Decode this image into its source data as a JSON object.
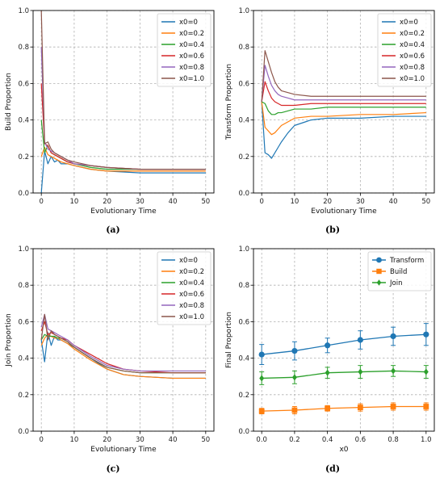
{
  "chart_data": [
    {
      "type": "line",
      "caption": "(a)",
      "xlabel": "Evolutionary Time",
      "ylabel": "Build Proportion",
      "xlim": [
        -2.5,
        52.5
      ],
      "ylim": [
        0,
        1
      ],
      "xticks": [
        0,
        10,
        20,
        30,
        40,
        50
      ],
      "yticks": [
        0.0,
        0.2,
        0.4,
        0.6,
        0.8,
        1.0
      ],
      "grid": true,
      "legend": "top-right",
      "series": [
        {
          "name": "x0=0",
          "color": "#1f77b4",
          "x": [
            0,
            1,
            2,
            3,
            4,
            5,
            6,
            8,
            10,
            15,
            20,
            30,
            40,
            50
          ],
          "y": [
            0.0,
            0.23,
            0.16,
            0.2,
            0.17,
            0.18,
            0.16,
            0.16,
            0.15,
            0.13,
            0.12,
            0.11,
            0.11,
            0.11
          ]
        },
        {
          "name": "x0=0.2",
          "color": "#ff7f0e",
          "x": [
            0,
            1,
            2,
            3,
            4,
            5,
            6,
            8,
            10,
            15,
            20,
            30,
            40,
            50
          ],
          "y": [
            0.2,
            0.25,
            0.21,
            0.2,
            0.19,
            0.18,
            0.17,
            0.16,
            0.15,
            0.13,
            0.12,
            0.12,
            0.12,
            0.12
          ]
        },
        {
          "name": "x0=0.4",
          "color": "#2ca02c",
          "x": [
            0,
            1,
            2,
            3,
            4,
            5,
            6,
            8,
            10,
            15,
            20,
            30,
            40,
            50
          ],
          "y": [
            0.4,
            0.22,
            0.26,
            0.22,
            0.21,
            0.2,
            0.19,
            0.17,
            0.16,
            0.14,
            0.13,
            0.13,
            0.13,
            0.13
          ]
        },
        {
          "name": "x0=0.6",
          "color": "#d62728",
          "x": [
            0,
            1,
            2,
            3,
            4,
            5,
            6,
            8,
            10,
            15,
            20,
            30,
            40,
            50
          ],
          "y": [
            0.6,
            0.27,
            0.26,
            0.22,
            0.21,
            0.2,
            0.19,
            0.17,
            0.16,
            0.15,
            0.14,
            0.13,
            0.13,
            0.13
          ]
        },
        {
          "name": "x0=0.8",
          "color": "#9467bd",
          "x": [
            0,
            1,
            2,
            3,
            4,
            5,
            6,
            8,
            10,
            15,
            20,
            30,
            40,
            50
          ],
          "y": [
            0.8,
            0.28,
            0.24,
            0.23,
            0.22,
            0.21,
            0.2,
            0.18,
            0.16,
            0.15,
            0.14,
            0.13,
            0.13,
            0.13
          ]
        },
        {
          "name": "x0=1.0",
          "color": "#8c564b",
          "x": [
            0,
            1,
            2,
            3,
            4,
            5,
            6,
            8,
            10,
            15,
            20,
            30,
            40,
            50
          ],
          "y": [
            1.0,
            0.27,
            0.28,
            0.24,
            0.22,
            0.21,
            0.2,
            0.18,
            0.17,
            0.15,
            0.14,
            0.13,
            0.13,
            0.13
          ]
        }
      ]
    },
    {
      "type": "line",
      "caption": "(b)",
      "xlabel": "Evolutionary Time",
      "ylabel": "Transform Proportion",
      "xlim": [
        -2.5,
        52.5
      ],
      "ylim": [
        0,
        1
      ],
      "xticks": [
        0,
        10,
        20,
        30,
        40,
        50
      ],
      "yticks": [
        0.0,
        0.2,
        0.4,
        0.6,
        0.8,
        1.0
      ],
      "grid": true,
      "legend": "top-right",
      "series": [
        {
          "name": "x0=0",
          "color": "#1f77b4",
          "x": [
            0,
            1,
            2,
            3,
            4,
            5,
            6,
            8,
            10,
            15,
            20,
            30,
            40,
            50
          ],
          "y": [
            0.5,
            0.22,
            0.21,
            0.19,
            0.22,
            0.25,
            0.28,
            0.33,
            0.37,
            0.4,
            0.41,
            0.41,
            0.42,
            0.42
          ]
        },
        {
          "name": "x0=0.2",
          "color": "#ff7f0e",
          "x": [
            0,
            1,
            2,
            3,
            4,
            5,
            6,
            8,
            10,
            15,
            20,
            30,
            40,
            50
          ],
          "y": [
            0.5,
            0.36,
            0.34,
            0.32,
            0.33,
            0.35,
            0.37,
            0.39,
            0.41,
            0.42,
            0.42,
            0.43,
            0.43,
            0.44
          ]
        },
        {
          "name": "x0=0.4",
          "color": "#2ca02c",
          "x": [
            0,
            1,
            2,
            3,
            4,
            5,
            6,
            8,
            10,
            15,
            20,
            30,
            40,
            50
          ],
          "y": [
            0.5,
            0.49,
            0.45,
            0.43,
            0.43,
            0.44,
            0.44,
            0.45,
            0.46,
            0.46,
            0.47,
            0.47,
            0.47,
            0.47
          ]
        },
        {
          "name": "x0=0.6",
          "color": "#d62728",
          "x": [
            0,
            1,
            2,
            3,
            4,
            5,
            6,
            8,
            10,
            15,
            20,
            30,
            40,
            50
          ],
          "y": [
            0.5,
            0.61,
            0.56,
            0.52,
            0.5,
            0.49,
            0.48,
            0.48,
            0.48,
            0.49,
            0.49,
            0.49,
            0.49,
            0.49
          ]
        },
        {
          "name": "x0=0.8",
          "color": "#9467bd",
          "x": [
            0,
            1,
            2,
            3,
            4,
            5,
            6,
            8,
            10,
            15,
            20,
            30,
            40,
            50
          ],
          "y": [
            0.5,
            0.7,
            0.64,
            0.59,
            0.56,
            0.54,
            0.53,
            0.52,
            0.51,
            0.51,
            0.51,
            0.51,
            0.51,
            0.51
          ]
        },
        {
          "name": "x0=1.0",
          "color": "#8c564b",
          "x": [
            0,
            1,
            2,
            3,
            4,
            5,
            6,
            8,
            10,
            15,
            20,
            30,
            40,
            50
          ],
          "y": [
            0.5,
            0.78,
            0.72,
            0.66,
            0.61,
            0.58,
            0.56,
            0.55,
            0.54,
            0.53,
            0.53,
            0.53,
            0.53,
            0.53
          ]
        }
      ]
    },
    {
      "type": "line",
      "caption": "(c)",
      "xlabel": "Evolutionary Time",
      "ylabel": "Join Proportion",
      "xlim": [
        -2.5,
        52.5
      ],
      "ylim": [
        0,
        1
      ],
      "xticks": [
        0,
        10,
        20,
        30,
        40,
        50
      ],
      "yticks": [
        0.0,
        0.2,
        0.4,
        0.6,
        0.8,
        1.0
      ],
      "grid": true,
      "legend": "top-right",
      "series": [
        {
          "name": "x0=0",
          "color": "#1f77b4",
          "x": [
            0,
            1,
            2,
            3,
            4,
            5,
            6,
            8,
            10,
            15,
            20,
            25,
            30,
            40,
            50
          ],
          "y": [
            0.5,
            0.38,
            0.54,
            0.47,
            0.52,
            0.5,
            0.5,
            0.48,
            0.46,
            0.4,
            0.34,
            0.31,
            0.3,
            0.29,
            0.29
          ]
        },
        {
          "name": "x0=0.2",
          "color": "#ff7f0e",
          "x": [
            0,
            1,
            2,
            3,
            4,
            5,
            6,
            8,
            10,
            15,
            20,
            25,
            30,
            40,
            50
          ],
          "y": [
            0.47,
            0.51,
            0.53,
            0.52,
            0.51,
            0.51,
            0.5,
            0.48,
            0.45,
            0.39,
            0.34,
            0.31,
            0.3,
            0.29,
            0.29
          ]
        },
        {
          "name": "x0=0.4",
          "color": "#2ca02c",
          "x": [
            0,
            1,
            2,
            3,
            4,
            5,
            6,
            8,
            10,
            15,
            20,
            25,
            30,
            40,
            50
          ],
          "y": [
            0.5,
            0.53,
            0.52,
            0.52,
            0.52,
            0.51,
            0.51,
            0.49,
            0.46,
            0.4,
            0.35,
            0.33,
            0.32,
            0.32,
            0.32
          ]
        },
        {
          "name": "x0=0.6",
          "color": "#d62728",
          "x": [
            0,
            1,
            2,
            3,
            4,
            5,
            6,
            8,
            10,
            15,
            20,
            25,
            30,
            40,
            50
          ],
          "y": [
            0.55,
            0.6,
            0.53,
            0.54,
            0.53,
            0.52,
            0.51,
            0.5,
            0.47,
            0.42,
            0.37,
            0.34,
            0.33,
            0.32,
            0.32
          ]
        },
        {
          "name": "x0=0.8",
          "color": "#9467bd",
          "x": [
            0,
            1,
            2,
            3,
            4,
            5,
            6,
            8,
            10,
            15,
            20,
            25,
            30,
            40,
            50
          ],
          "y": [
            0.57,
            0.64,
            0.56,
            0.55,
            0.54,
            0.53,
            0.52,
            0.5,
            0.47,
            0.41,
            0.36,
            0.34,
            0.33,
            0.33,
            0.33
          ]
        },
        {
          "name": "x0=1.0",
          "color": "#8c564b",
          "x": [
            0,
            1,
            2,
            3,
            4,
            5,
            6,
            8,
            10,
            15,
            20,
            25,
            30,
            40,
            50
          ],
          "y": [
            0.5,
            0.64,
            0.5,
            0.55,
            0.53,
            0.52,
            0.51,
            0.49,
            0.46,
            0.4,
            0.35,
            0.33,
            0.32,
            0.32,
            0.32
          ]
        }
      ]
    },
    {
      "type": "line",
      "caption": "(d)",
      "xlabel": "x0",
      "ylabel": "Final Proportion",
      "xlim": [
        -0.05,
        1.05
      ],
      "ylim": [
        0,
        1
      ],
      "xticks": [
        0.0,
        0.2,
        0.4,
        0.6,
        0.8,
        1.0
      ],
      "yticks": [
        0.0,
        0.2,
        0.4,
        0.6,
        0.8,
        1.0
      ],
      "grid": true,
      "legend": "top-right",
      "x": [
        0.0,
        0.2,
        0.4,
        0.6,
        0.8,
        1.0
      ],
      "series": [
        {
          "name": "Transform",
          "color": "#1f77b4",
          "marker": "circle",
          "values": [
            0.42,
            0.44,
            0.47,
            0.5,
            0.52,
            0.53
          ],
          "errors": [
            0.055,
            0.05,
            0.04,
            0.05,
            0.05,
            0.06
          ]
        },
        {
          "name": "Build",
          "color": "#ff7f0e",
          "marker": "square",
          "values": [
            0.11,
            0.115,
            0.125,
            0.13,
            0.135,
            0.135
          ],
          "errors": [
            0.015,
            0.02,
            0.015,
            0.02,
            0.02,
            0.02
          ]
        },
        {
          "name": "Join",
          "color": "#2ca02c",
          "marker": "diamond",
          "values": [
            0.29,
            0.295,
            0.32,
            0.325,
            0.33,
            0.325
          ],
          "errors": [
            0.035,
            0.035,
            0.03,
            0.035,
            0.03,
            0.035
          ]
        }
      ]
    }
  ]
}
